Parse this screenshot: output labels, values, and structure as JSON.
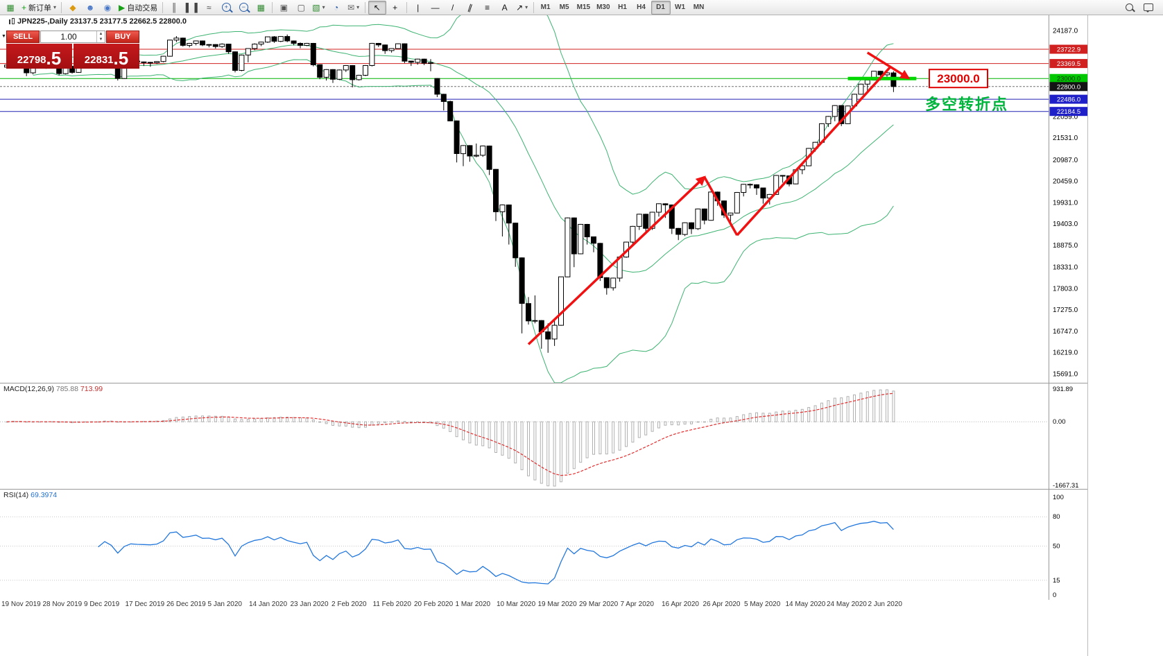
{
  "toolbar": {
    "items": [
      {
        "kind": "icon",
        "name": "terminal-grid-icon",
        "glyph": "▦",
        "color": "#2e8b2e"
      },
      {
        "kind": "button",
        "name": "new-order-button",
        "glyph": "+",
        "glyph_color": "#18a018",
        "label": "新订单",
        "caret": true
      },
      {
        "kind": "sep"
      },
      {
        "kind": "icon",
        "name": "market-watch-icon",
        "glyph": "◆",
        "color": "#dc9a10"
      },
      {
        "kind": "icon",
        "name": "data-window-icon",
        "glyph": "☻",
        "color": "#4a78c8"
      },
      {
        "kind": "icon",
        "name": "navigator-icon",
        "glyph": "◉",
        "color": "#4a78c8"
      },
      {
        "kind": "button",
        "name": "auto-trading-button",
        "glyph": "▶",
        "glyph_color": "#18a018",
        "label": "自动交易"
      },
      {
        "kind": "sep"
      },
      {
        "kind": "icon",
        "name": "bar-chart-icon",
        "glyph": "║",
        "color": "#444"
      },
      {
        "kind": "icon",
        "name": "candlestick-chart-icon",
        "glyph": "▌▐",
        "color": "#444"
      },
      {
        "kind": "icon",
        "name": "line-chart-icon",
        "glyph": "≈",
        "color": "#444"
      },
      {
        "kind": "icon",
        "name": "zoom-in-icon",
        "glyph": "+",
        "color": "#2b5fa8",
        "mag": true
      },
      {
        "kind": "icon",
        "name": "zoom-out-icon",
        "glyph": "−",
        "color": "#2b5fa8",
        "mag": true
      },
      {
        "kind": "icon",
        "name": "tile-windows-icon",
        "glyph": "▦",
        "color": "#2e8b2e"
      },
      {
        "kind": "sep"
      },
      {
        "kind": "icon",
        "name": "arrange-windows-icon",
        "glyph": "▣",
        "color": "#555"
      },
      {
        "kind": "icon",
        "name": "cascade-windows-icon",
        "glyph": "▢",
        "color": "#555"
      },
      {
        "kind": "button",
        "name": "new-chart-button",
        "glyph": "▧",
        "glyph_color": "#2e8b2e",
        "caret": true
      },
      {
        "kind": "icon",
        "name": "period-clock-icon",
        "glyph": "◔",
        "color": "#2b5fa8"
      },
      {
        "kind": "button",
        "name": "mail-button",
        "glyph": "✉",
        "glyph_color": "#666",
        "caret": true
      },
      {
        "kind": "sep"
      },
      {
        "kind": "icon",
        "name": "cursor-icon",
        "glyph": "↖",
        "color": "#111",
        "active": true
      },
      {
        "kind": "icon",
        "name": "crosshair-icon",
        "glyph": "+",
        "color": "#111"
      },
      {
        "kind": "sep"
      },
      {
        "kind": "icon",
        "name": "vertical-line-tool-icon",
        "glyph": "|",
        "color": "#111"
      },
      {
        "kind": "icon",
        "name": "horizontal-line-tool-icon",
        "glyph": "—",
        "color": "#111"
      },
      {
        "kind": "icon",
        "name": "trendline-tool-icon",
        "glyph": "/",
        "color": "#111"
      },
      {
        "kind": "icon",
        "name": "equidistant-channel-icon",
        "glyph": "∥",
        "color": "#111",
        "tilt": true
      },
      {
        "kind": "icon",
        "name": "fibonacci-tool-icon",
        "glyph": "≡",
        "color": "#111"
      },
      {
        "kind": "icon",
        "name": "text-tool-icon",
        "glyph": "A",
        "color": "#111"
      },
      {
        "kind": "button",
        "name": "arrows-tool-button",
        "glyph": "↗",
        "glyph_color": "#111",
        "caret": true
      },
      {
        "kind": "sep"
      }
    ],
    "timeframes": [
      {
        "label": "M1"
      },
      {
        "label": "M5"
      },
      {
        "label": "M15"
      },
      {
        "label": "M30"
      },
      {
        "label": "H1"
      },
      {
        "label": "H4"
      },
      {
        "label": "D1",
        "active": true
      },
      {
        "label": "W1"
      },
      {
        "label": "MN"
      }
    ]
  },
  "chart": {
    "header_text": "JPN225-,Daily  23137.5 23177.5 22662.5 22800.0"
  },
  "trade_panel": {
    "sell_label": "SELL",
    "buy_label": "BUY",
    "volume": "1.00",
    "sell_price_main": "22798",
    "sell_price_frac": ".5",
    "buy_price_main": "22831",
    "buy_price_frac": ".5"
  },
  "macd_panel": {
    "title": "MACD(12,26,9)",
    "value1": "785.88",
    "value2": "713.99",
    "axis_max": "931.89",
    "axis_zero": "0.00",
    "axis_min": "-1667.31"
  },
  "rsi_panel": {
    "title": "RSI(14)",
    "value": "69.3974"
  },
  "chart_data": {
    "type": "candlestick",
    "symbol": "JPN225",
    "timeframe": "Daily",
    "colors": {
      "band": "#3CB371",
      "arrow": "#f01212",
      "up": "#ffffff",
      "down": "#000000"
    },
    "price_axis": {
      "min": 15691.0,
      "max": 24187.0,
      "ticks": [
        24187.0,
        22059.0,
        21531.0,
        20987.0,
        20459.0,
        19931.0,
        19403.0,
        18875.0,
        18331.0,
        17803.0,
        17275.0,
        16747.0,
        16219.0,
        15691.0
      ],
      "badges": [
        {
          "p": 23722.9,
          "label": "23722.9",
          "bg": "#d02020",
          "fg": "#ffffff"
        },
        {
          "p": 23369.5,
          "label": "23369.5",
          "bg": "#d02020",
          "fg": "#ffffff"
        },
        {
          "p": 23000.0,
          "label": "23000.0",
          "bg": "#00c800",
          "fg": "#003300"
        },
        {
          "p": 22800.0,
          "label": "22800.0",
          "bg": "#141414",
          "fg": "#ffffff"
        },
        {
          "p": 22486.0,
          "label": "22486.0",
          "bg": "#2020c8",
          "fg": "#ffffff"
        },
        {
          "p": 22184.5,
          "label": "22184.5",
          "bg": "#2020c8",
          "fg": "#ffffff"
        }
      ]
    },
    "hlines": [
      {
        "price": 23722.9,
        "color": "#d02020"
      },
      {
        "price": 23369.5,
        "color": "#d02020"
      },
      {
        "price": 23000.0,
        "color": "#00b400"
      },
      {
        "price": 22800.0,
        "color": "#707070",
        "dash": "3,2"
      },
      {
        "price": 22486.0,
        "color": "#2020b4"
      },
      {
        "price": 22184.5,
        "color": "#2020b4"
      }
    ],
    "bollinger": {
      "period": 20,
      "deviation": 2
    },
    "annotations": {
      "support_segment": {
        "i0": 129,
        "i1": 139.5,
        "p": 23000,
        "color": "#00d800"
      },
      "price_box_label": "23000.0",
      "price_box_color": "#e00000",
      "cn_text": "多空转折点",
      "cn_color": "#00b43c",
      "trend_arrows": [
        {
          "from": {
            "i": 80,
            "p": 16420
          },
          "to": {
            "i": 107,
            "p": 20560
          },
          "head": true
        },
        {
          "from": {
            "i": 107,
            "p": 20560
          },
          "to": {
            "i": 112,
            "p": 19120
          },
          "head": false
        },
        {
          "from": {
            "i": 112,
            "p": 19120
          },
          "to": {
            "i": 135.6,
            "p": 23300
          },
          "head": false
        },
        {
          "from": {
            "i": 132,
            "p": 23640
          },
          "to": {
            "i": 138.3,
            "p": 23010
          },
          "head": true
        }
      ]
    },
    "macd": {
      "fast": 12,
      "slow": 26,
      "signal": 9
    },
    "rsi": {
      "period": 14,
      "axis": [
        {
          "v": 100,
          "t": "100"
        },
        {
          "v": 80,
          "t": "80"
        },
        {
          "v": 50,
          "t": "50"
        },
        {
          "v": 15,
          "t": "15"
        },
        {
          "v": 0,
          "t": "0"
        }
      ],
      "line_levels": [
        80,
        50,
        15
      ]
    },
    "dates": [
      "19 Nov 2019",
      "28 Nov 2019",
      "9 Dec 2019",
      "17 Dec 2019",
      "26 Dec 2019",
      "5 Jan 2020",
      "14 Jan 2020",
      "23 Jan 2020",
      "2 Feb 2020",
      "11 Feb 2020",
      "20 Feb 2020",
      "1 Mar 2020",
      "10 Mar 2020",
      "19 Mar 2020",
      "29 Mar 2020",
      "7 Apr 2020",
      "16 Apr 2020",
      "26 Apr 2020",
      "5 May 2020",
      "14 May 2020",
      "24 May 2020",
      "2 Jun 2020"
    ],
    "ohlc": [
      [
        23280,
        23360,
        23250,
        23330
      ],
      [
        23330,
        23540,
        23300,
        23520
      ],
      [
        23520,
        23550,
        23270,
        23320
      ],
      [
        23320,
        23330,
        23060,
        23140
      ],
      [
        23140,
        23320,
        23100,
        23300
      ],
      [
        23300,
        23430,
        23280,
        23420
      ],
      [
        23420,
        23440,
        23240,
        23290
      ],
      [
        23290,
        23400,
        23250,
        23380
      ],
      [
        23380,
        23390,
        23080,
        23120
      ],
      [
        23120,
        23310,
        23100,
        23300
      ],
      [
        23300,
        23310,
        23120,
        23150
      ],
      [
        23150,
        23380,
        23140,
        23370
      ],
      [
        23370,
        23450,
        23330,
        23440
      ],
      [
        23440,
        23460,
        23370,
        23410
      ],
      [
        23410,
        23430,
        23250,
        23290
      ],
      [
        23290,
        23540,
        23280,
        23530
      ],
      [
        23530,
        23540,
        23330,
        23380
      ],
      [
        23380,
        23390,
        22950,
        23000
      ],
      [
        23000,
        23320,
        22990,
        23300
      ],
      [
        23300,
        23450,
        23280,
        23430
      ],
      [
        23430,
        23440,
        23340,
        23410
      ],
      [
        23410,
        23420,
        23310,
        23400
      ],
      [
        23400,
        23410,
        23290,
        23390
      ],
      [
        23390,
        23430,
        23360,
        23420
      ],
      [
        23420,
        23560,
        23400,
        23550
      ],
      [
        23550,
        23960,
        23540,
        23950
      ],
      [
        23950,
        24050,
        23900,
        24000
      ],
      [
        24000,
        24010,
        23790,
        23820
      ],
      [
        23820,
        23880,
        23770,
        23870
      ],
      [
        23870,
        23940,
        23820,
        23930
      ],
      [
        23930,
        23940,
        23800,
        23830
      ],
      [
        23830,
        23850,
        23770,
        23840
      ],
      [
        23840,
        23850,
        23740,
        23790
      ],
      [
        23790,
        23870,
        23760,
        23850
      ],
      [
        23850,
        23860,
        23610,
        23660
      ],
      [
        23660,
        23670,
        23150,
        23200
      ],
      [
        23200,
        23590,
        23180,
        23580
      ],
      [
        23580,
        23750,
        23400,
        23740
      ],
      [
        23740,
        23870,
        23700,
        23850
      ],
      [
        23850,
        23910,
        23800,
        23900
      ],
      [
        23900,
        24040,
        23880,
        24030
      ],
      [
        24030,
        24050,
        23880,
        23920
      ],
      [
        23920,
        24050,
        23900,
        24040
      ],
      [
        24040,
        24090,
        23900,
        23930
      ],
      [
        23930,
        23940,
        23820,
        23870
      ],
      [
        23870,
        23890,
        23750,
        23820
      ],
      [
        23820,
        23880,
        23800,
        23870
      ],
      [
        23870,
        23880,
        23300,
        23340
      ],
      [
        23340,
        23350,
        22980,
        23030
      ],
      [
        23030,
        23230,
        22950,
        23220
      ],
      [
        23220,
        23230,
        22890,
        22980
      ],
      [
        22980,
        23220,
        22960,
        23210
      ],
      [
        23210,
        23330,
        23160,
        23320
      ],
      [
        23320,
        23330,
        22780,
        22970
      ],
      [
        22970,
        23090,
        22950,
        23080
      ],
      [
        23080,
        23330,
        23060,
        23320
      ],
      [
        23320,
        23880,
        23300,
        23870
      ],
      [
        23870,
        23880,
        23780,
        23830
      ],
      [
        23830,
        23840,
        23610,
        23690
      ],
      [
        23690,
        23750,
        23640,
        23740
      ],
      [
        23740,
        23870,
        23730,
        23860
      ],
      [
        23860,
        23870,
        23380,
        23430
      ],
      [
        23430,
        23440,
        23310,
        23400
      ],
      [
        23400,
        23490,
        23340,
        23480
      ],
      [
        23480,
        23490,
        23330,
        23380
      ],
      [
        23380,
        23480,
        23180,
        23390
      ],
      [
        23000,
        23010,
        22540,
        22610
      ],
      [
        22610,
        22620,
        22210,
        22430
      ],
      [
        22430,
        22450,
        21940,
        21950
      ],
      [
        21950,
        21960,
        20920,
        21140
      ],
      [
        21140,
        21350,
        20830,
        21340
      ],
      [
        21340,
        21350,
        20940,
        21080
      ],
      [
        21080,
        21390,
        21050,
        21100
      ],
      [
        21100,
        21340,
        21060,
        21330
      ],
      [
        21330,
        21340,
        20610,
        20750
      ],
      [
        20750,
        20760,
        19470,
        19700
      ],
      [
        19700,
        19880,
        19090,
        19870
      ],
      [
        19870,
        19880,
        18890,
        19420
      ],
      [
        19420,
        19430,
        18340,
        18560
      ],
      [
        18560,
        18570,
        16690,
        17430
      ],
      [
        17430,
        17590,
        16910,
        17000
      ],
      [
        17000,
        17630,
        16940,
        17010
      ],
      [
        17010,
        17020,
        16310,
        16730
      ],
      [
        16730,
        16940,
        16210,
        16550
      ],
      [
        16550,
        17010,
        16380,
        16890
      ],
      [
        16890,
        18090,
        16880,
        18090
      ],
      [
        18090,
        19560,
        18080,
        19550
      ],
      [
        19550,
        19560,
        18330,
        18660
      ],
      [
        18660,
        19400,
        18650,
        19390
      ],
      [
        19390,
        19400,
        18890,
        19080
      ],
      [
        19080,
        19090,
        18700,
        18920
      ],
      [
        18920,
        18930,
        17990,
        18070
      ],
      [
        18070,
        18080,
        17650,
        17820
      ],
      [
        17820,
        18070,
        17750,
        18060
      ],
      [
        18060,
        18600,
        17970,
        18580
      ],
      [
        18580,
        18960,
        18560,
        18950
      ],
      [
        18950,
        19350,
        18860,
        19340
      ],
      [
        19340,
        19650,
        19250,
        19640
      ],
      [
        19640,
        19650,
        19170,
        19290
      ],
      [
        19290,
        19700,
        19250,
        19690
      ],
      [
        19690,
        19910,
        19580,
        19900
      ],
      [
        19900,
        19910,
        19550,
        19870
      ],
      [
        19870,
        19880,
        19150,
        19290
      ],
      [
        19290,
        19300,
        19000,
        19140
      ],
      [
        19140,
        19440,
        19100,
        19430
      ],
      [
        19430,
        19440,
        19150,
        19280
      ],
      [
        19280,
        19780,
        19250,
        19770
      ],
      [
        19770,
        19780,
        19390,
        19490
      ],
      [
        19490,
        20200,
        19480,
        20190
      ],
      [
        20190,
        20200,
        19850,
        19970
      ],
      [
        19970,
        19980,
        19550,
        19620
      ],
      [
        19620,
        19680,
        19440,
        19670
      ],
      [
        19670,
        20190,
        19660,
        20180
      ],
      [
        20180,
        20390,
        20080,
        20380
      ],
      [
        20380,
        20400,
        20280,
        20370
      ],
      [
        20370,
        20380,
        20120,
        20290
      ],
      [
        20290,
        20300,
        19900,
        20040
      ],
      [
        20040,
        20140,
        19880,
        20130
      ],
      [
        20130,
        20610,
        20120,
        20600
      ],
      [
        20600,
        20610,
        20420,
        20590
      ],
      [
        20590,
        20600,
        20330,
        20390
      ],
      [
        20390,
        20750,
        20380,
        20740
      ],
      [
        20740,
        20850,
        20630,
        20840
      ],
      [
        20840,
        21280,
        20830,
        21270
      ],
      [
        21270,
        21430,
        21190,
        21420
      ],
      [
        21420,
        21890,
        21410,
        21880
      ],
      [
        21880,
        22070,
        21800,
        22060
      ],
      [
        22060,
        22340,
        21940,
        22330
      ],
      [
        22330,
        22340,
        21820,
        21880
      ],
      [
        21880,
        22330,
        21870,
        22320
      ],
      [
        22320,
        22620,
        22310,
        22610
      ],
      [
        22610,
        22870,
        22600,
        22860
      ],
      [
        22860,
        22970,
        22690,
        22960
      ],
      [
        22960,
        23190,
        22950,
        23180
      ],
      [
        23180,
        23190,
        22950,
        23090
      ],
      [
        23090,
        23180,
        23040,
        23140
      ],
      [
        23137.5,
        23177.5,
        22662.5,
        22800
      ]
    ]
  }
}
